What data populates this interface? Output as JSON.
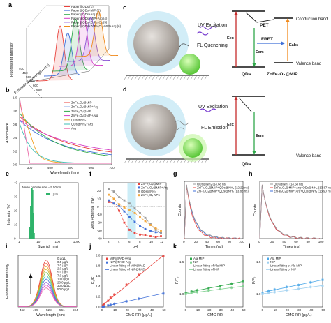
{
  "panel_letters": [
    "a",
    "b",
    "c",
    "d",
    "e",
    "f",
    "g",
    "h",
    "i",
    "j",
    "k",
    "l"
  ],
  "colors": {
    "red": "#e8423c",
    "blue": "#3f6fd8",
    "green": "#2fa84a",
    "magenta": "#d43fc6",
    "purple": "#8c55d4",
    "orange": "#f08a1c",
    "teal": "#3fbfb6",
    "pink": "#e96aa8",
    "qd_green": "#86e24e",
    "mip_grey": "#b9b3ac",
    "halo": "#bfe6f4",
    "violet": "#7a3fd0"
  },
  "scheme_c": {
    "uv_label": "UV Excitation",
    "state_label": "FL Quenching",
    "pet": "PET",
    "fret": "FRET",
    "ex": "Eex",
    "em": "Eem",
    "eabs": "Eabs",
    "conduction": "Conduction band",
    "valence": "Valence band",
    "qds": "QDs",
    "mip": "ZnFe₂O₄@MIP"
  },
  "scheme_d": {
    "uv_label": "UV Excitation",
    "state_label": "FL Emission",
    "ex": "Eex",
    "em": "Eem",
    "valence": "Valence band",
    "qds": "QDs"
  },
  "chart_data": [
    {
      "panel": "a",
      "type": "line",
      "xlabel": "Emission Wavelength (nm)",
      "ylabel": "Fluorescent intensity",
      "x_ticks": [
        "400",
        "450",
        "500",
        "550",
        "600",
        "650"
      ],
      "series": [
        {
          "name": "Paper@QDs (1)",
          "color": "#e8423c",
          "peak": 1.0
        },
        {
          "name": "Paper@QDs+MIP (2)",
          "color": "#3f6fd8",
          "peak": 0.78
        },
        {
          "name": "Paper@QDs+Arg (3)",
          "color": "#2fa84a",
          "peak": 0.95
        },
        {
          "name": "Paper@QDs+MIP+Arg (4)",
          "color": "#d43fc6",
          "peak": 0.98
        },
        {
          "name": "Paper@QDs+ZnFe₂O₄ (5)",
          "color": "#8c55d4",
          "peak": 0.8
        },
        {
          "name": "Paper@QDs+ZnFe₂O₄+MIP+Arg (6)",
          "color": "#f08a1c",
          "peak": 0.82
        }
      ]
    },
    {
      "panel": "b",
      "type": "line",
      "xlabel": "Wavelength (nm)",
      "ylabel": "Absorbance",
      "xlim": [
        250,
        700
      ],
      "ylim": [
        0.0,
        1.0
      ],
      "x_ticks": [
        300,
        400,
        500,
        600,
        700
      ],
      "y_ticks": [
        0.0,
        0.2,
        0.4,
        0.6,
        0.8,
        1.0
      ],
      "series": [
        {
          "name": "ZnFe₂O₄@MIP",
          "color": "#e8423c"
        },
        {
          "name": "ZnFe₂O₄@MIP+Arg",
          "color": "#3f6fd8"
        },
        {
          "name": "ZnFe₂O₄@NIP",
          "color": "#2fa84a"
        },
        {
          "name": "ZnFe₂O₄@NIP+Arg",
          "color": "#d43fc6"
        },
        {
          "name": "QDs@NH₂",
          "color": "#f0a020"
        },
        {
          "name": "QDs@NH₂+Arg",
          "color": "#3fbfb6"
        },
        {
          "name": "Arg",
          "color": "#e96aa8"
        }
      ]
    },
    {
      "panel": "e",
      "type": "bar",
      "xlabel": "Size (d. nm)",
      "ylabel": "Intensity (%)",
      "annotation": "Mean particle size = 5.50 nm",
      "legend": "QDs",
      "x": [
        3.8,
        4.2,
        4.6,
        5.0,
        5.5,
        6.0
      ],
      "values": [
        8,
        23,
        36,
        35,
        18,
        4
      ],
      "ylim": [
        0,
        40
      ],
      "y_ticks": [
        0,
        10,
        20,
        30,
        40
      ],
      "x_ticks": [
        "1",
        "10",
        "100",
        "1000"
      ]
    },
    {
      "panel": "f",
      "type": "line",
      "xlabel": "pH",
      "ylabel": "Zeta Potential (mV)",
      "xlim": [
        1,
        13
      ],
      "ylim": [
        -40,
        30
      ],
      "x_ticks": [
        2,
        4,
        6,
        8,
        10,
        12
      ],
      "y_ticks": [
        -40,
        -30,
        -20,
        -10,
        0,
        10,
        20
      ],
      "series": [
        {
          "name": "ZnFe₂O₄@MIP",
          "color": "#e8423c",
          "x": [
            2,
            3,
            4,
            5,
            6,
            7,
            8,
            9,
            10,
            11,
            12
          ],
          "y": [
            6,
            4,
            -5,
            -20,
            -29,
            -33,
            -35,
            -36,
            -37,
            -38,
            -37
          ]
        },
        {
          "name": "ZnFe₂O₄@MIP+Arg",
          "color": "#3f6fd8",
          "x": [
            2,
            3,
            4,
            5,
            6,
            7,
            8,
            9,
            10,
            11,
            12
          ],
          "y": [
            8,
            4,
            1,
            -6,
            -13,
            -19,
            -24,
            -28,
            -30,
            -32,
            -33
          ]
        },
        {
          "name": "QDs@NH₂",
          "color": "#9a9a9a",
          "x": [
            2,
            3,
            4,
            5,
            6,
            7,
            8,
            9,
            10,
            11,
            12
          ],
          "y": [
            22,
            19,
            12,
            8,
            4,
            -2,
            -8,
            -14,
            -22,
            -29,
            -33
          ]
        },
        {
          "name": "ZnFe₂O₄ NPs",
          "color": "#f2a840",
          "x": [
            2,
            3,
            4,
            5,
            6,
            7,
            8,
            9,
            10,
            11,
            12
          ],
          "y": [
            15,
            10,
            3,
            -1,
            -4,
            -8,
            -13,
            -18,
            -23,
            -27,
            -30
          ]
        }
      ]
    },
    {
      "panel": "g",
      "type": "line",
      "xlabel": "Times (ns)",
      "ylabel": "Counts",
      "series": [
        {
          "name": "QDs@NH₂ (14.68 ns)",
          "color": "#9a9a9a",
          "tau": 14.68
        },
        {
          "name": "ZnFe₂O₄@MIP+QDs@NH₂ (12.22 ns)",
          "color": "#e8423c",
          "tau": 12.22
        },
        {
          "name": "ZnFe₂O₄@NIP+QDs@NH₂ (13.88 ns)",
          "color": "#3f6fd8",
          "tau": 13.88
        }
      ],
      "x_ticks": [
        0,
        20,
        40,
        60,
        80,
        100
      ]
    },
    {
      "panel": "h",
      "type": "line",
      "xlabel": "Times (ns)",
      "ylabel": "Counts",
      "series": [
        {
          "name": "QDs@NH₂ (14.68 ns)",
          "color": "#9a9a9a",
          "tau": 14.68
        },
        {
          "name": "ZnFe₂O₄@MIP+Arg+QDs@NH₂ (13.87 ns)",
          "color": "#e8423c",
          "tau": 13.87
        },
        {
          "name": "ZnFe₂O₄@NIP+Arg+QDs@NH₂ (13.90 ns)",
          "color": "#3f6fd8",
          "tau": 13.9
        }
      ],
      "x_ticks": [
        0,
        20,
        40,
        60,
        80,
        100
      ]
    },
    {
      "panel": "i",
      "type": "line",
      "xlabel": "Wavelength (nm)",
      "ylabel": "Fluorescent Intensity",
      "x_ticks": [
        "462",
        "495",
        "528",
        "561",
        "594"
      ],
      "series": [
        {
          "name": "0 μg/L",
          "color": "#e8423c",
          "peak": 1.0
        },
        {
          "name": "0.5 μg/L",
          "color": "#ee6a4c",
          "peak": 0.93
        },
        {
          "name": "1.0 μg/L",
          "color": "#f0a020",
          "peak": 0.86
        },
        {
          "name": "2.0 μg/L",
          "color": "#c9b22a",
          "peak": 0.8
        },
        {
          "name": "5.0 μg/L",
          "color": "#7ac04a",
          "peak": 0.73
        },
        {
          "name": "7.0 μg/L",
          "color": "#3fbfb6",
          "peak": 0.66
        },
        {
          "name": "10.0 μg/L",
          "color": "#3f6fd8",
          "peak": 0.59
        },
        {
          "name": "20.0 μg/L",
          "color": "#8c55d4",
          "peak": 0.52
        },
        {
          "name": "30.0 μg/L",
          "color": "#d43fc6",
          "peak": 0.46
        },
        {
          "name": "50.0 μg/L",
          "color": "#e96aa8",
          "peak": 0.4
        }
      ]
    },
    {
      "panel": "j",
      "type": "scatter",
      "xlabel": "CMC-RR (μg/L)",
      "ylabel": "F₀/F",
      "xlim": [
        0,
        50
      ],
      "ylim": [
        1.0,
        2.0
      ],
      "x_ticks": [
        0,
        10,
        20,
        30,
        40,
        50
      ],
      "y_ticks": [
        1.0,
        1.2,
        1.4,
        1.6,
        1.8,
        2.0
      ],
      "series": [
        {
          "name": "MIP@PAD+Arg",
          "color": "#e8423c",
          "x": [
            0.5,
            1,
            2,
            5,
            7,
            10,
            20,
            30,
            50
          ],
          "y": [
            1.0,
            1.03,
            1.06,
            1.12,
            1.18,
            1.24,
            1.43,
            1.62,
            1.98
          ]
        },
        {
          "name": "NIP@PAD+Arg",
          "color": "#3f6fd8",
          "x": [
            0.5,
            1,
            2,
            5,
            7,
            10,
            20,
            30,
            50
          ],
          "y": [
            1.0,
            1.0,
            1.01,
            1.03,
            1.04,
            1.06,
            1.11,
            1.16,
            1.26
          ]
        }
      ],
      "fit_labels": [
        "Linear fitting of MIP@PAD",
        "Linear fitting of NIP@PAD"
      ]
    },
    {
      "panel": "k",
      "type": "scatter",
      "xlabel": "CMC-RR",
      "ylabel": "F/F₀",
      "xlim": [
        0,
        50
      ],
      "ylim": [
        0.8,
        1.6
      ],
      "x_ticks": [
        0,
        10,
        20,
        30,
        40,
        50
      ],
      "y_ticks": [
        1.0,
        1.5
      ],
      "series": [
        {
          "name": "Ala MIP",
          "color": "#2fa84a",
          "x": [
            0,
            5,
            10,
            20,
            30,
            40,
            50
          ],
          "y": [
            1.02,
            1.04,
            1.06,
            1.09,
            1.12,
            1.16,
            1.2
          ]
        },
        {
          "name": "NIP",
          "color": "#7fd08f",
          "x": [
            0,
            5,
            10,
            20,
            30,
            40,
            50
          ],
          "y": [
            1.0,
            1.02,
            1.03,
            1.05,
            1.08,
            1.1,
            1.12
          ]
        }
      ],
      "fit_labels": [
        "Linear fitting of Ala MIP",
        "Linear fitting of NIP"
      ]
    },
    {
      "panel": "l",
      "type": "scatter",
      "xlabel": "CMC-RR (μg/L)",
      "ylabel": "F/F₀",
      "xlim": [
        0,
        50
      ],
      "ylim": [
        0.8,
        1.6
      ],
      "x_ticks": [
        0,
        10,
        20,
        30,
        40,
        50
      ],
      "y_ticks": [
        1.0,
        1.5
      ],
      "series": [
        {
          "name": "Ala MIP",
          "color": "#4aa7e8",
          "x": [
            0,
            5,
            10,
            20,
            30,
            40,
            50
          ],
          "y": [
            1.02,
            1.05,
            1.07,
            1.11,
            1.14,
            1.18,
            1.22
          ]
        },
        {
          "name": "NIP",
          "color": "#9fd0f0",
          "x": [
            0,
            5,
            10,
            20,
            30,
            40,
            50
          ],
          "y": [
            1.0,
            1.02,
            1.03,
            1.06,
            1.08,
            1.11,
            1.13
          ]
        }
      ],
      "fit_labels": [
        "Linear fitting of Ala MIP",
        "Linear fitting of NIP"
      ]
    }
  ]
}
